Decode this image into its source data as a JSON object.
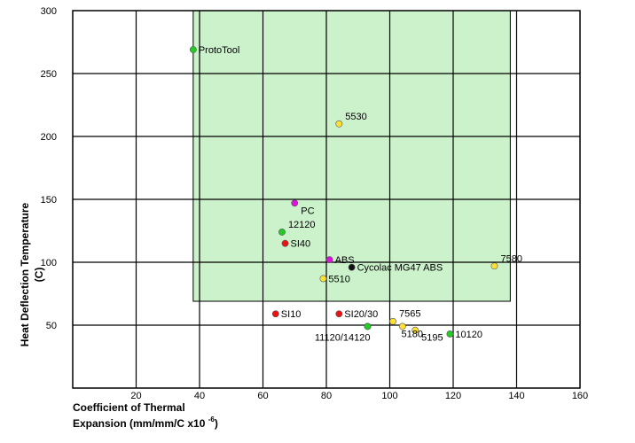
{
  "chart_data": {
    "type": "scatter",
    "title": "",
    "xlabel_line1": "Coefficient of Thermal",
    "xlabel_line2": "Expansion (mm/mm/C x10 ",
    "xlabel_superscript": "-6",
    "xlabel_close": ")",
    "ylabel_line1": "Heat Deflection Temperature",
    "ylabel_line2": "(C)",
    "xlim": [
      0,
      160
    ],
    "ylim": [
      0,
      300
    ],
    "x_ticks": [
      {
        "value": 20,
        "label": "20"
      },
      {
        "value": 40,
        "label": "40"
      },
      {
        "value": 60,
        "label": "60"
      },
      {
        "value": 80,
        "label": "80"
      },
      {
        "value": 100,
        "label": "100"
      },
      {
        "value": 120,
        "label": "120"
      },
      {
        "value": 140,
        "label": "140"
      },
      {
        "value": 160,
        "label": "160"
      }
    ],
    "y_ticks": [
      {
        "value": 50,
        "label": "50"
      },
      {
        "value": 100,
        "label": "100"
      },
      {
        "value": 150,
        "label": "150"
      },
      {
        "value": 200,
        "label": "200"
      },
      {
        "value": 250,
        "label": "250"
      },
      {
        "value": 300,
        "label": "300"
      }
    ],
    "grid": true,
    "region": {
      "x0": 38,
      "x1": 138,
      "y0": 69,
      "y1": 300,
      "color": "#ccf2cc"
    },
    "colors": {
      "green": "#22cc22",
      "yellow": "#ffe033",
      "red": "#ee1111",
      "magenta": "#dd11dd",
      "black": "#111111"
    },
    "points": [
      {
        "label": "ProtoTool",
        "x": 38,
        "y": 269,
        "color": "green",
        "label_side": "right"
      },
      {
        "label": "5530",
        "x": 84,
        "y": 210,
        "color": "yellow",
        "label_side": "upper-right"
      },
      {
        "label": "PC",
        "x": 70,
        "y": 147,
        "color": "magenta",
        "label_side": "lower-right"
      },
      {
        "label": "12120",
        "x": 66,
        "y": 124,
        "color": "green",
        "label_side": "upper-right"
      },
      {
        "label": "SI40",
        "x": 67,
        "y": 115,
        "color": "red",
        "label_side": "right"
      },
      {
        "label": "ABS",
        "x": 81,
        "y": 102,
        "color": "magenta",
        "label_side": "right"
      },
      {
        "label": "Cycolac MG47 ABS",
        "x": 88,
        "y": 96,
        "color": "black",
        "label_side": "right"
      },
      {
        "label": "5510",
        "x": 79,
        "y": 87,
        "color": "yellow",
        "label_side": "right"
      },
      {
        "label": "7580",
        "x": 133,
        "y": 97,
        "color": "yellow",
        "label_side": "upper-right"
      },
      {
        "label": "SI10",
        "x": 64,
        "y": 59,
        "color": "red",
        "label_side": "right"
      },
      {
        "label": "SI20/30",
        "x": 84,
        "y": 59,
        "color": "red",
        "label_side": "right"
      },
      {
        "label": "7565",
        "x": 101,
        "y": 53,
        "color": "yellow",
        "label_side": "upper-right"
      },
      {
        "label": "",
        "x": 104,
        "y": 49,
        "color": "yellow",
        "label_side": "none"
      },
      {
        "label": "5180",
        "x": 93,
        "y": 49,
        "color": "green",
        "label_side": "lower-far-right"
      },
      {
        "label": "11120/14120",
        "x": 93,
        "y": 49,
        "color": "green",
        "label_side": "lower-left"
      },
      {
        "label": "5195",
        "x": 108,
        "y": 46,
        "color": "yellow",
        "label_side": "lower-right"
      },
      {
        "label": "10120",
        "x": 119,
        "y": 43,
        "color": "green",
        "label_side": "right"
      }
    ]
  }
}
